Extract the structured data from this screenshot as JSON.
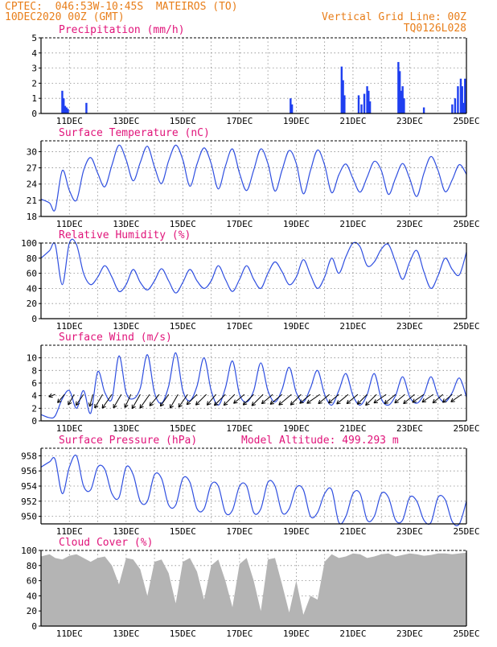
{
  "header": {
    "left_line1": "CPTEC:  046:53W-10:45S  MATEIROS (TO)",
    "left_line2": "10DEC2020 00Z (GMT)",
    "right_line1": "Vertical Grid Line: 00Z",
    "right_line2": "TQ0126L028"
  },
  "colors": {
    "header": "#e87e1a",
    "title": "#e0147a",
    "line": "#2f4fe0",
    "bar": "#1e3ff0",
    "cloud": "#b4b4b4",
    "grid": "#8c8c8c",
    "wind": "#000000"
  },
  "x_axis": {
    "start": "10DEC2020 00Z",
    "end": "25DEC2020 00Z",
    "tick_labels": [
      "11DEC",
      "13DEC",
      "15DEC",
      "17DEC",
      "19DEC",
      "21DEC",
      "23DEC",
      "25DEC"
    ],
    "tick_days": [
      11,
      13,
      15,
      17,
      19,
      21,
      23,
      25
    ],
    "grid": "vertical dotted lines at 00Z each day"
  },
  "chart_data": [
    {
      "type": "bar",
      "title": "Precipitation (mm/h)",
      "ylim": [
        0,
        5
      ],
      "yticks": [
        0,
        1,
        2,
        3,
        4,
        5
      ],
      "x_units": "day of December 2020",
      "series": [
        {
          "x": [
            10.75,
            10.8,
            10.85,
            10.9,
            10.95,
            11.6,
            18.8,
            18.85,
            20.6,
            20.65,
            20.7,
            21.2,
            21.3,
            21.4,
            21.5,
            21.55,
            21.6,
            22.6,
            22.65,
            22.7,
            22.75,
            22.8,
            23.5,
            24.5,
            24.6,
            24.7,
            24.8,
            24.85,
            24.9,
            24.95
          ],
          "values": [
            1.5,
            1.0,
            0.5,
            0.4,
            0.3,
            0.7,
            1.0,
            0.6,
            3.1,
            2.2,
            1.2,
            1.2,
            0.6,
            1.3,
            1.8,
            1.5,
            0.8,
            3.4,
            2.8,
            1.5,
            1.8,
            1.0,
            0.4,
            0.6,
            1.0,
            1.8,
            2.3,
            1.8,
            0.7,
            2.3
          ]
        }
      ]
    },
    {
      "type": "line",
      "title": "Surface Temperature (nC)",
      "ylim": [
        18,
        32
      ],
      "yticks": [
        18,
        21,
        24,
        27,
        30
      ],
      "series": [
        {
          "x": [
            10.0,
            10.3,
            10.5,
            10.75,
            11.0,
            11.25,
            11.5,
            11.75,
            12.0,
            12.25,
            12.5,
            12.75,
            13.0,
            13.25,
            13.5,
            13.75,
            14.0,
            14.25,
            14.5,
            14.75,
            15.0,
            15.25,
            15.5,
            15.75,
            16.0,
            16.25,
            16.5,
            16.75,
            17.0,
            17.25,
            17.5,
            17.75,
            18.0,
            18.25,
            18.5,
            18.75,
            19.0,
            19.25,
            19.5,
            19.75,
            20.0,
            20.25,
            20.5,
            20.75,
            21.0,
            21.25,
            21.5,
            21.75,
            22.0,
            22.25,
            22.5,
            22.75,
            23.0,
            23.25,
            23.5,
            23.75,
            24.0,
            24.25,
            24.5,
            24.75,
            25.0
          ],
          "values": [
            21.2,
            20.5,
            19.3,
            26.5,
            22.8,
            21.0,
            26.5,
            28.9,
            26.0,
            23.5,
            27.5,
            31.2,
            28.5,
            24.6,
            28.0,
            31.0,
            27.2,
            24.1,
            28.3,
            31.2,
            28.5,
            23.6,
            27.7,
            30.7,
            27.8,
            23.1,
            27.3,
            30.5,
            26.0,
            22.8,
            26.6,
            30.5,
            27.8,
            22.7,
            26.6,
            30.2,
            27.8,
            22.2,
            26.5,
            30.3,
            27.5,
            22.4,
            25.7,
            27.7,
            25.0,
            22.5,
            25.3,
            28.2,
            26.5,
            22.1,
            25.1,
            27.8,
            25.0,
            21.7,
            26.0,
            29.1,
            26.5,
            22.6,
            24.8,
            27.6,
            25.8
          ]
        }
      ]
    },
    {
      "type": "line",
      "title": "Relative Humidity (%)",
      "ylim": [
        0,
        100
      ],
      "yticks": [
        0,
        20,
        40,
        60,
        80,
        100
      ],
      "series": [
        {
          "x": [
            10.0,
            10.3,
            10.5,
            10.75,
            11.0,
            11.25,
            11.5,
            11.75,
            12.0,
            12.25,
            12.5,
            12.75,
            13.0,
            13.25,
            13.5,
            13.75,
            14.0,
            14.25,
            14.5,
            14.75,
            15.0,
            15.25,
            15.5,
            15.75,
            16.0,
            16.25,
            16.5,
            16.75,
            17.0,
            17.25,
            17.5,
            17.75,
            18.0,
            18.25,
            18.5,
            18.75,
            19.0,
            19.25,
            19.5,
            19.75,
            20.0,
            20.25,
            20.5,
            20.75,
            21.0,
            21.25,
            21.5,
            21.75,
            22.0,
            22.25,
            22.5,
            22.75,
            23.0,
            23.25,
            23.5,
            23.75,
            24.0,
            24.25,
            24.5,
            24.75,
            25.0
          ],
          "values": [
            80,
            90,
            98,
            45,
            100,
            98,
            60,
            45,
            55,
            70,
            55,
            36,
            45,
            65,
            48,
            38,
            50,
            66,
            50,
            34,
            48,
            65,
            50,
            40,
            50,
            70,
            52,
            36,
            52,
            70,
            52,
            40,
            60,
            75,
            62,
            45,
            55,
            78,
            58,
            40,
            55,
            80,
            60,
            82,
            100,
            95,
            70,
            75,
            92,
            98,
            75,
            52,
            75,
            90,
            62,
            40,
            57,
            80,
            65,
            58,
            88
          ]
        }
      ]
    },
    {
      "type": "line",
      "title": "Surface Wind (m/s)",
      "ylim": [
        0,
        12
      ],
      "yticks": [
        0,
        2,
        4,
        6,
        8,
        10
      ],
      "series": [
        {
          "x": [
            10.0,
            10.3,
            10.5,
            10.75,
            11.0,
            11.25,
            11.5,
            11.75,
            12.0,
            12.25,
            12.5,
            12.75,
            13.0,
            13.25,
            13.5,
            13.75,
            14.0,
            14.25,
            14.5,
            14.75,
            15.0,
            15.25,
            15.5,
            15.75,
            16.0,
            16.25,
            16.5,
            16.75,
            17.0,
            17.25,
            17.5,
            17.75,
            18.0,
            18.25,
            18.5,
            18.75,
            19.0,
            19.25,
            19.5,
            19.75,
            20.0,
            20.25,
            20.5,
            20.75,
            21.0,
            21.25,
            21.5,
            21.75,
            22.0,
            22.25,
            22.5,
            22.75,
            23.0,
            23.25,
            23.5,
            23.75,
            24.0,
            24.25,
            24.5,
            24.75,
            25.0
          ],
          "values": [
            1.0,
            0.5,
            0.8,
            3.5,
            4.8,
            2.0,
            4.8,
            1.2,
            7.8,
            4.5,
            3.5,
            10.3,
            4.5,
            3.5,
            5.2,
            10.5,
            4.5,
            2.8,
            5.5,
            10.8,
            4.8,
            3.2,
            5.5,
            10.0,
            4.8,
            2.5,
            5.2,
            9.5,
            4.2,
            3.0,
            4.8,
            9.2,
            4.8,
            3.0,
            5.0,
            8.5,
            4.5,
            3.0,
            5.2,
            8.0,
            4.2,
            2.5,
            4.8,
            7.5,
            4.0,
            2.5,
            4.2,
            7.5,
            3.5,
            2.5,
            4.0,
            7.0,
            3.8,
            2.8,
            4.2,
            7.0,
            4.0,
            3.0,
            4.5,
            6.8,
            3.8
          ]
        }
      ]
    },
    {
      "type": "line",
      "title": "Surface Pressure (hPa)",
      "annotation": "Model Altitude: 499.293 m",
      "ylim": [
        949,
        959
      ],
      "yticks": [
        950,
        952,
        954,
        956,
        958
      ],
      "series": [
        {
          "x": [
            10.0,
            10.3,
            10.5,
            10.75,
            11.0,
            11.25,
            11.5,
            11.75,
            12.0,
            12.25,
            12.5,
            12.75,
            13.0,
            13.25,
            13.5,
            13.75,
            14.0,
            14.25,
            14.5,
            14.75,
            15.0,
            15.25,
            15.5,
            15.75,
            16.0,
            16.25,
            16.5,
            16.75,
            17.0,
            17.25,
            17.5,
            17.75,
            18.0,
            18.25,
            18.5,
            18.75,
            19.0,
            19.25,
            19.5,
            19.75,
            20.0,
            20.25,
            20.5,
            20.75,
            21.0,
            21.25,
            21.5,
            21.75,
            22.0,
            22.25,
            22.5,
            22.75,
            23.0,
            23.25,
            23.5,
            23.75,
            24.0,
            24.25,
            24.5,
            24.75,
            25.0
          ],
          "values": [
            956.5,
            957.2,
            957.5,
            953.0,
            956.5,
            958.0,
            954.0,
            953.5,
            956.5,
            956.2,
            953.0,
            952.5,
            956.5,
            955.5,
            952.0,
            952.0,
            955.5,
            955.0,
            951.5,
            951.5,
            955.0,
            954.5,
            951.0,
            951.0,
            954.2,
            954.0,
            950.5,
            950.8,
            954.0,
            954.0,
            950.5,
            951.0,
            954.5,
            954.0,
            950.5,
            951.0,
            953.8,
            953.5,
            950.0,
            950.5,
            953.0,
            953.5,
            949.2,
            950.0,
            953.0,
            953.0,
            949.5,
            950.0,
            953.0,
            952.5,
            949.5,
            949.5,
            952.5,
            952.0,
            949.5,
            949.2,
            952.5,
            952.2,
            949.3,
            949.0,
            952.0
          ]
        }
      ]
    },
    {
      "type": "area",
      "title": "Cloud Cover (%)",
      "ylim": [
        0,
        100
      ],
      "yticks": [
        0,
        20,
        40,
        60,
        80,
        100
      ],
      "series": [
        {
          "x": [
            10.0,
            10.3,
            10.5,
            10.75,
            11.0,
            11.25,
            11.5,
            11.75,
            12.0,
            12.25,
            12.5,
            12.75,
            13.0,
            13.25,
            13.5,
            13.75,
            14.0,
            14.25,
            14.5,
            14.75,
            15.0,
            15.25,
            15.5,
            15.75,
            16.0,
            16.25,
            16.5,
            16.75,
            17.0,
            17.25,
            17.5,
            17.75,
            18.0,
            18.25,
            18.5,
            18.75,
            19.0,
            19.25,
            19.5,
            19.75,
            20.0,
            20.25,
            20.5,
            20.75,
            21.0,
            21.25,
            21.5,
            21.75,
            22.0,
            22.25,
            22.5,
            22.75,
            23.0,
            23.25,
            23.5,
            23.75,
            24.0,
            24.25,
            24.5,
            24.75,
            25.0
          ],
          "values": [
            92,
            95,
            90,
            88,
            93,
            95,
            90,
            85,
            90,
            92,
            80,
            55,
            90,
            88,
            75,
            40,
            85,
            88,
            70,
            30,
            85,
            90,
            72,
            35,
            80,
            88,
            60,
            25,
            82,
            90,
            60,
            20,
            88,
            90,
            55,
            18,
            60,
            15,
            40,
            35,
            85,
            95,
            90,
            92,
            96,
            95,
            90,
            92,
            95,
            96,
            92,
            94,
            96,
            95,
            93,
            94,
            96,
            96,
            95,
            96,
            97
          ]
        }
      ]
    }
  ],
  "wind_arrows": {
    "x": [
      10.5,
      10.83,
      11.17,
      11.5,
      11.83,
      12.17,
      12.5,
      12.83,
      13.17,
      13.5,
      13.83,
      14.17,
      14.5,
      14.83,
      15.17,
      15.5,
      15.83,
      16.17,
      16.5,
      16.83,
      17.17,
      17.5,
      17.83,
      18.17,
      18.5,
      18.83,
      19.17,
      19.5,
      19.83,
      20.17,
      20.5,
      20.83,
      21.17,
      21.5,
      21.83,
      22.17,
      22.5,
      22.83,
      23.17,
      23.5,
      23.83,
      24.17,
      24.5,
      24.83
    ],
    "speed": [
      0.8,
      2.5,
      3.0,
      3.5,
      3.2,
      4.5,
      5.0,
      4.5,
      4.0,
      4.8,
      5.0,
      4.2,
      4.0,
      4.6,
      4.5,
      4.0,
      4.2,
      3.8,
      4.5,
      4.4,
      3.8,
      4.2,
      4.6,
      4.0,
      4.4,
      4.8,
      4.2,
      3.8,
      4.5,
      4.0,
      3.6,
      4.2,
      4.0,
      3.8,
      4.4,
      4.2,
      4.0,
      3.5,
      4.0,
      3.8,
      3.6,
      3.5,
      3.2,
      3.4
    ],
    "direction_deg": [
      20,
      50,
      60,
      55,
      75,
      60,
      55,
      60,
      65,
      60,
      55,
      50,
      55,
      60,
      55,
      45,
      45,
      50,
      45,
      45,
      40,
      45,
      45,
      40,
      40,
      40,
      45,
      40,
      35,
      40,
      40,
      40,
      40,
      45,
      45,
      35,
      40,
      40,
      40,
      35,
      35,
      40,
      40,
      35
    ]
  }
}
